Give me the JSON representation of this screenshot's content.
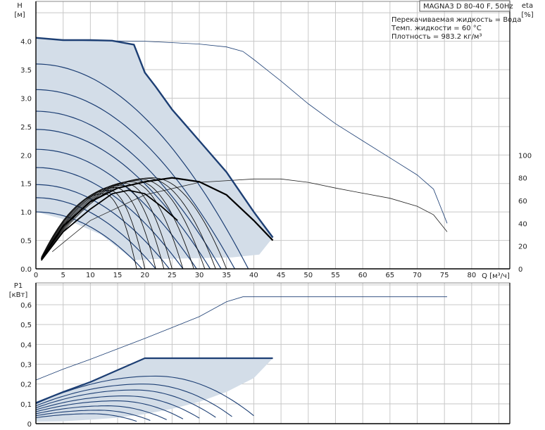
{
  "title": "MAGNA3 D 80-40 F, 50Hz",
  "info_lines": [
    "Перекачиваемая жидкость = Вода",
    "Темп. жидкости = 60 °C",
    "Плотность = 983.2 кг/м³"
  ],
  "colors": {
    "grid": "#c8c8c8",
    "fill": "#d3dde8",
    "curve": "#1d3f74",
    "eff_bold": "#000000",
    "axis": "#000000"
  },
  "chart_data": [
    {
      "type": "line",
      "name": "pump-head-chart",
      "xlabel": "Q [м³/ч]",
      "ylabel_left": [
        "H",
        "[м]"
      ],
      "ylabel_right": [
        "eta",
        "[%]"
      ],
      "xlim": [
        0,
        87
      ],
      "ylim_left": [
        0,
        4.7
      ],
      "ylim_right": [
        0,
        235
      ],
      "grid": true,
      "x_ticks": [
        0,
        5,
        10,
        15,
        20,
        25,
        30,
        35,
        40,
        45,
        50,
        55,
        60,
        65,
        70,
        75,
        80
      ],
      "x_tick_labels": [
        "0",
        "5",
        "10",
        "15",
        "20",
        "25",
        "30",
        "35",
        "40",
        "45",
        "50",
        "55",
        "60",
        "65",
        "70",
        "75",
        "80"
      ],
      "y_ticks_left": [
        0,
        0.5,
        1.0,
        1.5,
        2.0,
        2.5,
        3.0,
        3.5,
        4.0
      ],
      "y_tick_labels_left": [
        "0.0",
        "0.5",
        "1.0",
        "1.5",
        "2.0",
        "2.5",
        "3.0",
        "3.5",
        "4.0"
      ],
      "y_ticks_right": [
        0,
        20,
        40,
        60,
        80,
        100
      ],
      "y_tick_labels_right": [
        "0",
        "20",
        "40",
        "60",
        "80",
        "100"
      ],
      "operating_area": [
        [
          0,
          4.06
        ],
        [
          5,
          4.02
        ],
        [
          10,
          4.02
        ],
        [
          14,
          4.01
        ],
        [
          18,
          3.94
        ],
        [
          20,
          3.45
        ],
        [
          22,
          3.2
        ],
        [
          25,
          2.8
        ],
        [
          30,
          2.25
        ],
        [
          35,
          1.7
        ],
        [
          40,
          1.0
        ],
        [
          43.5,
          0.55
        ],
        [
          41,
          0.25
        ],
        [
          36,
          0.2
        ],
        [
          31,
          0.19
        ],
        [
          26,
          0.18
        ],
        [
          21,
          0.17
        ],
        [
          18,
          0.15
        ],
        [
          12,
          0.6
        ],
        [
          6,
          0.85
        ],
        [
          0,
          1.0
        ]
      ],
      "max_curve": [
        [
          0,
          4.06
        ],
        [
          5,
          4.02
        ],
        [
          10,
          4.02
        ],
        [
          14,
          4.01
        ],
        [
          18,
          3.94
        ],
        [
          20,
          3.45
        ],
        [
          22,
          3.2
        ],
        [
          25,
          2.8
        ],
        [
          30,
          2.25
        ],
        [
          35,
          1.7
        ],
        [
          40,
          1.0
        ],
        [
          43.5,
          0.55
        ]
      ],
      "max_curve_extended": [
        [
          0,
          4.06
        ],
        [
          5,
          4.02
        ],
        [
          10,
          4.01
        ],
        [
          20,
          4.0
        ],
        [
          30,
          3.95
        ],
        [
          35,
          3.9
        ],
        [
          38,
          3.82
        ],
        [
          40,
          3.68
        ],
        [
          45,
          3.3
        ],
        [
          50,
          2.9
        ],
        [
          55,
          2.55
        ],
        [
          60,
          2.25
        ],
        [
          65,
          1.95
        ],
        [
          70,
          1.65
        ],
        [
          73,
          1.4
        ],
        [
          75.5,
          0.8
        ]
      ],
      "speed_curves": [
        {
          "h0": 3.6,
          "q_end": 39.0
        },
        {
          "h0": 3.15,
          "q_end": 36.5
        },
        {
          "h0": 2.77,
          "q_end": 34.0
        },
        {
          "h0": 2.45,
          "q_end": 32.0
        },
        {
          "h0": 2.1,
          "q_end": 29.5
        },
        {
          "h0": 1.78,
          "q_end": 27.0
        },
        {
          "h0": 1.48,
          "q_end": 24.5
        },
        {
          "h0": 1.25,
          "q_end": 22.0
        },
        {
          "h0": 1.0,
          "q_end": 19.5
        }
      ],
      "eff_curves_thin": [
        {
          "peak": 1.32,
          "q_peak": 12.5,
          "q_end": 18.5
        },
        {
          "peak": 1.38,
          "q_peak": 13.5,
          "q_end": 20.0
        },
        {
          "peak": 1.43,
          "q_peak": 14.5,
          "q_end": 22.0
        },
        {
          "peak": 1.47,
          "q_peak": 15.5,
          "q_end": 23.5
        },
        {
          "peak": 1.5,
          "q_peak": 16.5,
          "q_end": 25.0
        },
        {
          "peak": 1.53,
          "q_peak": 17.5,
          "q_end": 27.0
        },
        {
          "peak": 1.55,
          "q_peak": 18.5,
          "q_end": 29.0
        },
        {
          "peak": 1.57,
          "q_peak": 19.5,
          "q_end": 31.0
        },
        {
          "peak": 1.59,
          "q_peak": 20.5,
          "q_end": 33.0
        },
        {
          "peak": 1.6,
          "q_peak": 21.5,
          "q_end": 35.0
        }
      ],
      "eff_curve_bold_1": [
        [
          1,
          0.17
        ],
        [
          5,
          0.75
        ],
        [
          10,
          1.18
        ],
        [
          15,
          1.42
        ],
        [
          20,
          1.53
        ],
        [
          25,
          1.6
        ],
        [
          30,
          1.53
        ],
        [
          35,
          1.3
        ],
        [
          40,
          0.85
        ],
        [
          43.5,
          0.5
        ]
      ],
      "eff_curve_bold_2": [
        [
          1,
          0.15
        ],
        [
          5,
          0.65
        ],
        [
          10,
          1.05
        ],
        [
          14,
          1.32
        ],
        [
          17,
          1.38
        ],
        [
          20,
          1.32
        ],
        [
          23,
          1.1
        ],
        [
          26,
          0.85
        ]
      ],
      "eff_curve_extended": [
        [
          3,
          0.3
        ],
        [
          10,
          0.85
        ],
        [
          20,
          1.3
        ],
        [
          30,
          1.52
        ],
        [
          40,
          1.58
        ],
        [
          45,
          1.58
        ],
        [
          50,
          1.52
        ],
        [
          55,
          1.42
        ],
        [
          60,
          1.33
        ],
        [
          65,
          1.24
        ],
        [
          70,
          1.1
        ],
        [
          73,
          0.95
        ],
        [
          75.5,
          0.65
        ]
      ]
    },
    {
      "type": "line",
      "name": "pump-power-chart",
      "xlabel": "",
      "ylabel_left": [
        "P1",
        "[кВт]"
      ],
      "xlim": [
        0,
        87
      ],
      "ylim_left": [
        0,
        0.71
      ],
      "grid": true,
      "y_ticks_left": [
        0,
        0.1,
        0.2,
        0.3,
        0.4,
        0.5,
        0.6
      ],
      "y_tick_labels_left": [
        "0",
        "0,1",
        "0,2",
        "0,3",
        "0,4",
        "0,5",
        "0,6"
      ],
      "power_area": [
        [
          0,
          0.105
        ],
        [
          5,
          0.16
        ],
        [
          10,
          0.21
        ],
        [
          15,
          0.27
        ],
        [
          20,
          0.33
        ],
        [
          25,
          0.33
        ],
        [
          30,
          0.33
        ],
        [
          35,
          0.33
        ],
        [
          40,
          0.33
        ],
        [
          43.5,
          0.33
        ],
        [
          40,
          0.23
        ],
        [
          35,
          0.16
        ],
        [
          30,
          0.11
        ],
        [
          25,
          0.075
        ],
        [
          20,
          0.048
        ],
        [
          15,
          0.03
        ],
        [
          10,
          0.02
        ],
        [
          5,
          0.012
        ],
        [
          0,
          0.01
        ]
      ],
      "power_max": [
        [
          0,
          0.105
        ],
        [
          5,
          0.16
        ],
        [
          10,
          0.21
        ],
        [
          15,
          0.27
        ],
        [
          20,
          0.33
        ],
        [
          25,
          0.33
        ],
        [
          30,
          0.33
        ],
        [
          35,
          0.33
        ],
        [
          40,
          0.33
        ],
        [
          43.5,
          0.33
        ]
      ],
      "power_extended": [
        [
          0,
          0.22
        ],
        [
          5,
          0.275
        ],
        [
          10,
          0.325
        ],
        [
          20,
          0.43
        ],
        [
          30,
          0.54
        ],
        [
          35,
          0.615
        ],
        [
          38,
          0.64
        ],
        [
          45,
          0.64
        ],
        [
          60,
          0.64
        ],
        [
          75.5,
          0.64
        ]
      ],
      "power_curves": [
        {
          "p0": 0.1,
          "pmax": 0.24,
          "q_end": 40
        },
        {
          "p0": 0.09,
          "pmax": 0.2,
          "q_end": 36
        },
        {
          "p0": 0.08,
          "pmax": 0.17,
          "q_end": 33
        },
        {
          "p0": 0.07,
          "pmax": 0.14,
          "q_end": 30
        },
        {
          "p0": 0.06,
          "pmax": 0.115,
          "q_end": 27
        },
        {
          "p0": 0.05,
          "pmax": 0.09,
          "q_end": 24
        },
        {
          "p0": 0.04,
          "pmax": 0.068,
          "q_end": 21
        },
        {
          "p0": 0.03,
          "pmax": 0.05,
          "q_end": 18.5
        }
      ]
    }
  ]
}
